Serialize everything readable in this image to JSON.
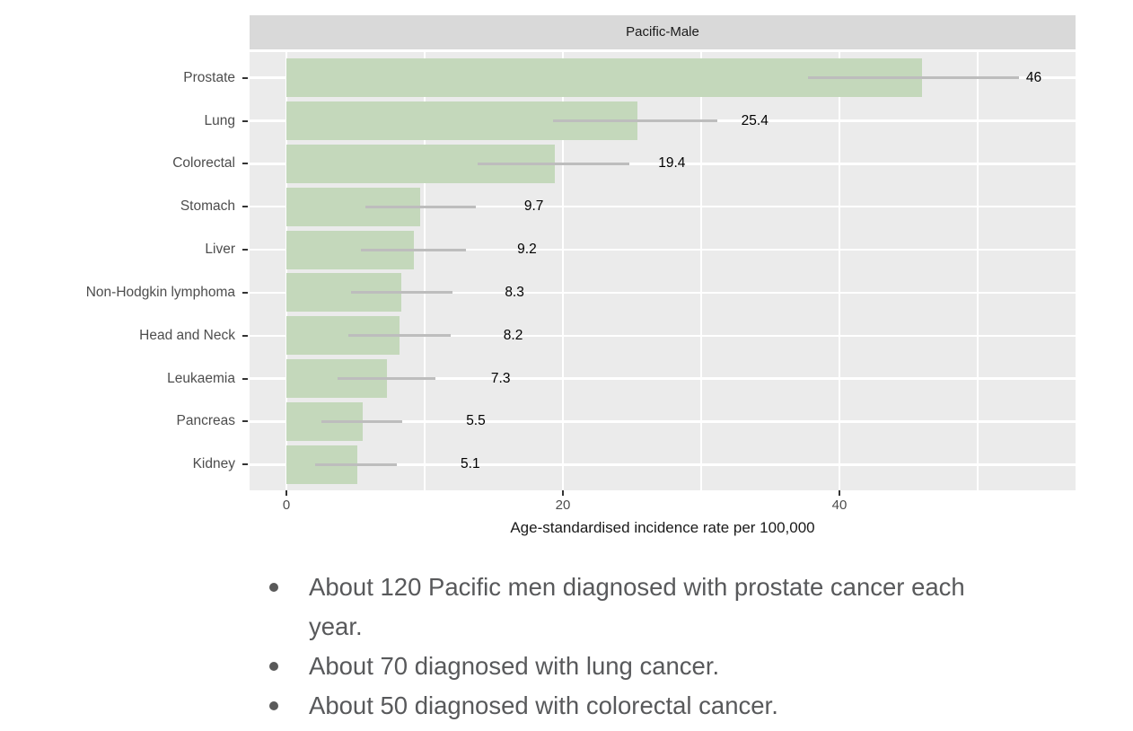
{
  "chart_data": {
    "type": "bar",
    "orientation": "horizontal",
    "title": "Pacific-Male",
    "xlabel": "Age-standardised incidence rate per 100,000",
    "xlim": [
      0,
      57
    ],
    "x_ticks": [
      0,
      20,
      40
    ],
    "x_tick_labels": [
      "0",
      "20",
      "40"
    ],
    "x_minor_ticks": [
      10,
      30,
      50
    ],
    "grid": "on",
    "legend": "none",
    "categories": [
      "Prostate",
      "Lung",
      "Colorectal",
      "Stomach",
      "Liver",
      "Non-Hodgkin lymphoma",
      "Head and Neck",
      "Leukaemia",
      "Pancreas",
      "Kidney"
    ],
    "values": [
      46,
      25.4,
      19.4,
      9.7,
      9.2,
      8.3,
      8.2,
      7.3,
      5.5,
      5.1
    ],
    "value_labels": [
      "46",
      "25.4",
      "19.4",
      "9.7",
      "9.2",
      "8.3",
      "8.2",
      "7.3",
      "5.5",
      "5.1"
    ],
    "error_low": [
      37.7,
      19.3,
      13.8,
      5.7,
      5.4,
      4.7,
      4.5,
      3.7,
      2.5,
      2.1
    ],
    "error_high": [
      53.0,
      31.2,
      24.8,
      13.7,
      13.0,
      12.0,
      11.9,
      10.8,
      8.4,
      8.0
    ],
    "colors": {
      "bar": "#c4d8bb",
      "error_bar": "#bdbdbd",
      "panel_bg": "#ebebeb",
      "strip_bg": "#d9d9d9",
      "grid": "#ffffff",
      "axis_text": "#4d4d4d",
      "tick_mark": "#333333",
      "title_text": "#1a1a1a",
      "value_text": "#000000"
    }
  },
  "bullets": [
    "About 120 Pacific men diagnosed with prostate cancer each\nyear.",
    "About 70 diagnosed with lung cancer.",
    "About 50 diagnosed with colorectal cancer."
  ]
}
